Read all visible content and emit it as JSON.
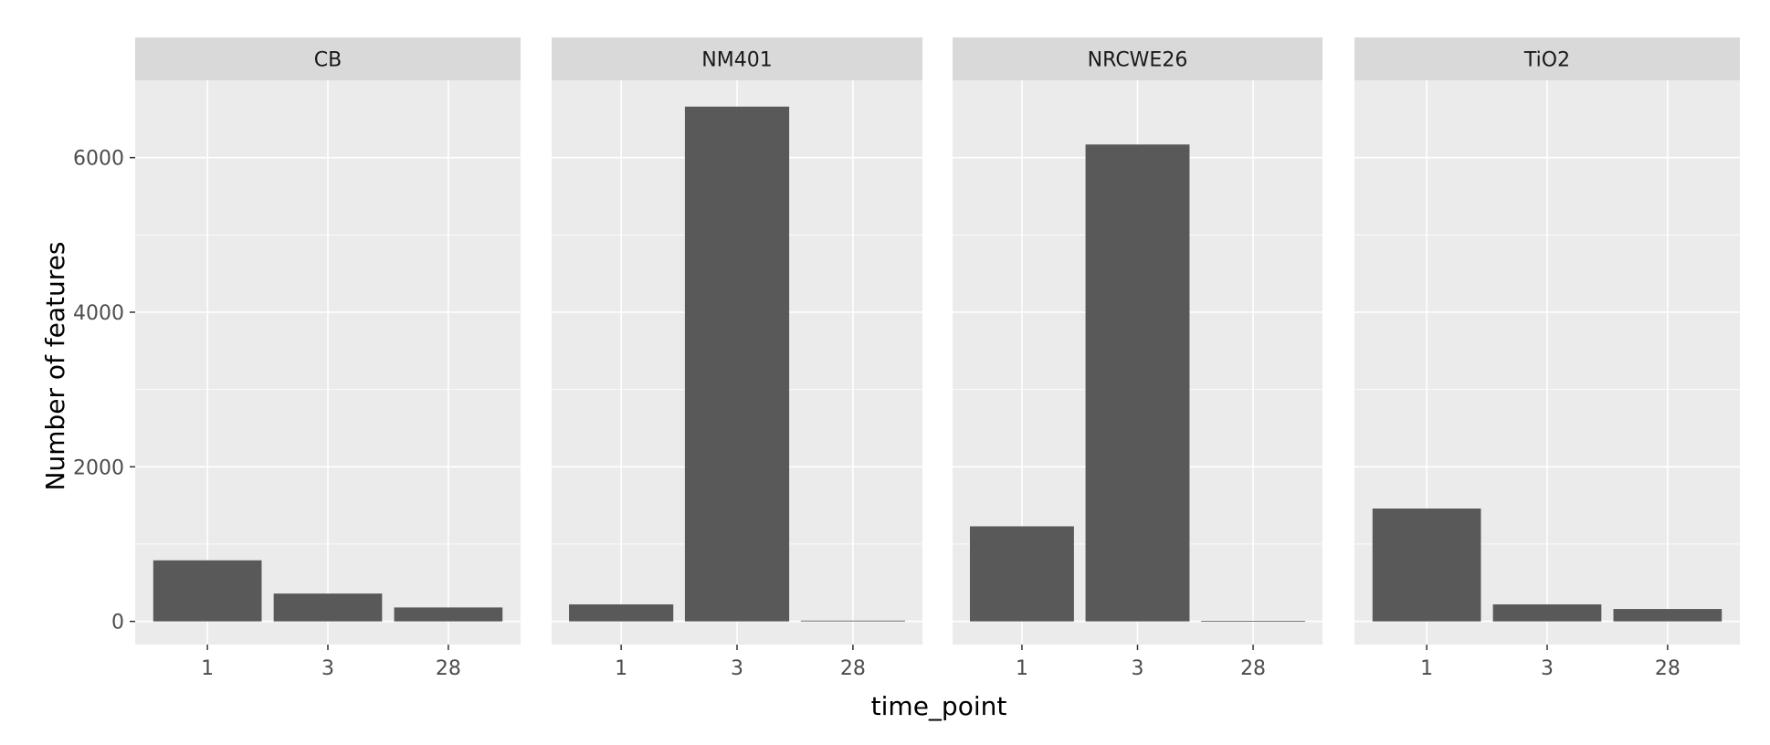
{
  "chart_data": {
    "type": "bar",
    "xlabel": "time_point",
    "ylabel": "Number of features",
    "categories": [
      "1",
      "3",
      "28"
    ],
    "ylim": [
      -300,
      7000
    ],
    "yticks": [
      0,
      2000,
      4000,
      6000
    ],
    "ytick_labels": [
      "0",
      "2000",
      "4000",
      "6000"
    ],
    "grid": true,
    "facets": [
      {
        "name": "CB",
        "values": [
          790,
          360,
          180
        ]
      },
      {
        "name": "NM401",
        "values": [
          220,
          6660,
          10
        ]
      },
      {
        "name": "NRCWE26",
        "values": [
          1230,
          6170,
          5
        ]
      },
      {
        "name": "TiO2",
        "values": [
          1460,
          220,
          160
        ]
      }
    ],
    "colors": {
      "bar": "#595959",
      "panel": "#ebebeb",
      "strip": "#d9d9d9",
      "grid": "#ffffff",
      "tick": "#333333"
    }
  }
}
